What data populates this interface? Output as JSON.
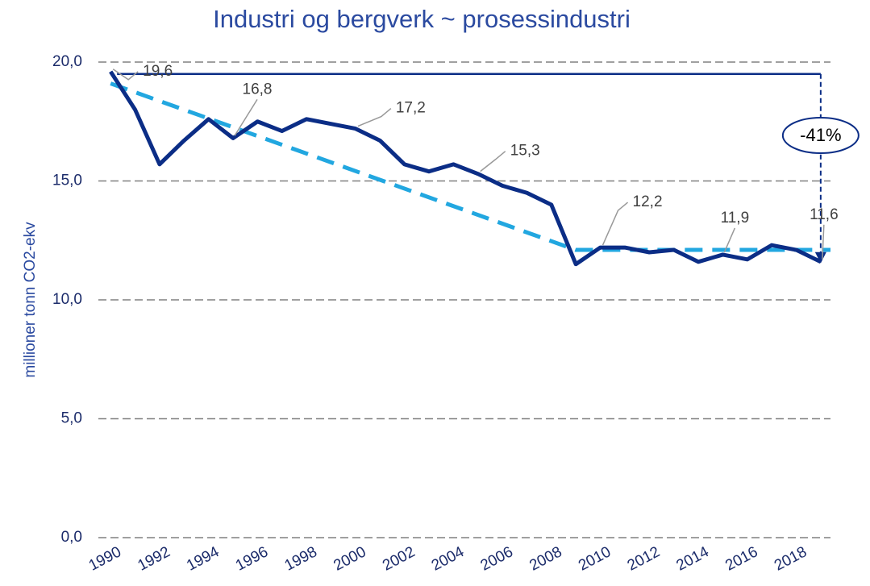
{
  "chart_data": {
    "type": "line",
    "title": "Industri og bergverk ~ prosessindustri",
    "ylabel": "millioner tonn CO2-ekv",
    "x": [
      1990,
      1991,
      1992,
      1993,
      1994,
      1995,
      1996,
      1997,
      1998,
      1999,
      2000,
      2001,
      2002,
      2003,
      2004,
      2005,
      2006,
      2007,
      2008,
      2009,
      2010,
      2011,
      2012,
      2013,
      2014,
      2015,
      2016,
      2017,
      2018,
      2019
    ],
    "series": [
      {
        "color": "#0b2d86",
        "style": "solid",
        "values": [
          19.6,
          18.0,
          15.7,
          16.7,
          17.6,
          16.8,
          17.5,
          17.1,
          17.6,
          17.4,
          17.2,
          16.7,
          15.7,
          15.4,
          15.7,
          15.3,
          14.8,
          14.5,
          14.0,
          11.5,
          12.2,
          12.2,
          12.0,
          12.1,
          11.6,
          11.9,
          11.7,
          12.3,
          12.1,
          11.6
        ],
        "value_labels": [
          "19,6",
          null,
          null,
          null,
          null,
          "16,8",
          null,
          null,
          null,
          null,
          "17,2",
          null,
          null,
          null,
          null,
          "15,3",
          null,
          null,
          null,
          null,
          "12,2",
          null,
          null,
          null,
          null,
          "11,9",
          null,
          null,
          null,
          "11,6"
        ]
      },
      {
        "color": "#22a7e0",
        "style": "dashed",
        "x": [
          1990,
          2009,
          2019.4
        ],
        "values": [
          19.1,
          12.1,
          12.1
        ]
      }
    ],
    "annotations": [
      {
        "text": "-41%"
      }
    ],
    "xlim": [
      1989.5,
      2019.4
    ],
    "xticks": [
      1990,
      1992,
      1994,
      1996,
      1998,
      2000,
      2002,
      2004,
      2006,
      2008,
      2010,
      2012,
      2014,
      2016,
      2018
    ],
    "ylim": [
      0,
      20
    ],
    "yticks": [
      {
        "value": 0,
        "label": "0,0"
      },
      {
        "value": 5,
        "label": "5,0"
      },
      {
        "value": 10,
        "label": "10,0"
      },
      {
        "value": 15,
        "label": "15,0"
      },
      {
        "value": 20,
        "label": "20,0"
      }
    ],
    "grid": true
  }
}
